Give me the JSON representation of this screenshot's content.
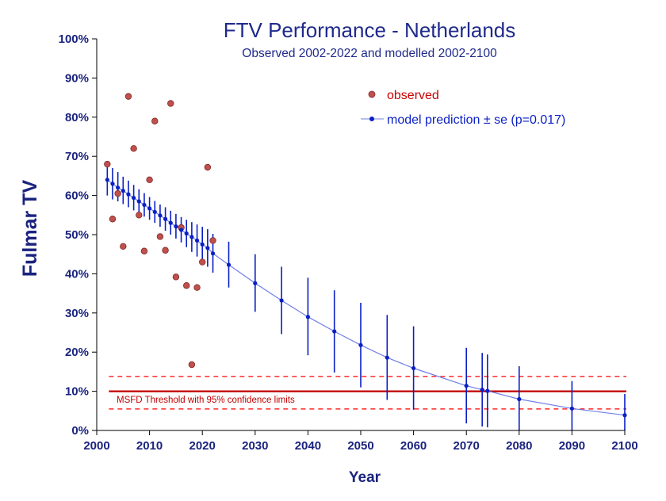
{
  "chart_data": {
    "type": "scatter",
    "title": "FTV Performance - Netherlands",
    "subtitle": "Observed 2002-2022 and modelled 2002-2100",
    "xlabel": "Year",
    "ylabel": "Fulmar TV",
    "xlim": [
      2000,
      2100
    ],
    "ylim": [
      0,
      100
    ],
    "x_ticks": [
      2000,
      2010,
      2020,
      2030,
      2040,
      2050,
      2060,
      2070,
      2080,
      2090,
      2100
    ],
    "y_ticks": [
      "0%",
      "10%",
      "20%",
      "30%",
      "40%",
      "50%",
      "60%",
      "70%",
      "80%",
      "90%",
      "100%"
    ],
    "legend": [
      "observed",
      "model prediction ± se (p=0.017)"
    ],
    "legend_position": "top-right",
    "threshold_label": "MSFD Threshold with 95% confidence limits",
    "threshold": {
      "value": 10,
      "lower": 5.5,
      "upper": 13.8,
      "x_start": 2002,
      "x_end": 2100
    },
    "observed": [
      {
        "x": 2002,
        "y": 68
      },
      {
        "x": 2003,
        "y": 54
      },
      {
        "x": 2004,
        "y": 60.5
      },
      {
        "x": 2005,
        "y": 47
      },
      {
        "x": 2006,
        "y": 85.3
      },
      {
        "x": 2007,
        "y": 72
      },
      {
        "x": 2008,
        "y": 55
      },
      {
        "x": 2009,
        "y": 45.8
      },
      {
        "x": 2010,
        "y": 64
      },
      {
        "x": 2011,
        "y": 79
      },
      {
        "x": 2012,
        "y": 49.5
      },
      {
        "x": 2013,
        "y": 46
      },
      {
        "x": 2014,
        "y": 83.5
      },
      {
        "x": 2015,
        "y": 39.2
      },
      {
        "x": 2016,
        "y": 51.8
      },
      {
        "x": 2017,
        "y": 37
      },
      {
        "x": 2018,
        "y": 16.8
      },
      {
        "x": 2019,
        "y": 36.5
      },
      {
        "x": 2020,
        "y": 43
      },
      {
        "x": 2021,
        "y": 67.2
      },
      {
        "x": 2022,
        "y": 48.5
      }
    ],
    "model": [
      {
        "x": 2002,
        "y": 64,
        "lo": 60,
        "hi": 68
      },
      {
        "x": 2003,
        "y": 63,
        "lo": 59,
        "hi": 67
      },
      {
        "x": 2004,
        "y": 62,
        "lo": 58.5,
        "hi": 66
      },
      {
        "x": 2005,
        "y": 61.2,
        "lo": 57.8,
        "hi": 64.8
      },
      {
        "x": 2006,
        "y": 60.3,
        "lo": 57,
        "hi": 63.8
      },
      {
        "x": 2007,
        "y": 59.4,
        "lo": 56.2,
        "hi": 62.7
      },
      {
        "x": 2008,
        "y": 58.5,
        "lo": 55.4,
        "hi": 61.6
      },
      {
        "x": 2009,
        "y": 57.6,
        "lo": 54.6,
        "hi": 60.6
      },
      {
        "x": 2010,
        "y": 56.7,
        "lo": 53.8,
        "hi": 59.6
      },
      {
        "x": 2011,
        "y": 55.8,
        "lo": 53,
        "hi": 58.6
      },
      {
        "x": 2012,
        "y": 54.9,
        "lo": 52,
        "hi": 57.7
      },
      {
        "x": 2013,
        "y": 54,
        "lo": 51,
        "hi": 57
      },
      {
        "x": 2014,
        "y": 53,
        "lo": 50,
        "hi": 56.1
      },
      {
        "x": 2015,
        "y": 52.1,
        "lo": 49,
        "hi": 55.3
      },
      {
        "x": 2016,
        "y": 51.2,
        "lo": 48,
        "hi": 54.5
      },
      {
        "x": 2017,
        "y": 50.3,
        "lo": 46.8,
        "hi": 53.8
      },
      {
        "x": 2018,
        "y": 49.4,
        "lo": 45.6,
        "hi": 53.2
      },
      {
        "x": 2019,
        "y": 48.5,
        "lo": 44.4,
        "hi": 52.6
      },
      {
        "x": 2020,
        "y": 47.5,
        "lo": 43,
        "hi": 52
      },
      {
        "x": 2021,
        "y": 46.6,
        "lo": 41.8,
        "hi": 51.4
      },
      {
        "x": 2022,
        "y": 45.2,
        "lo": 40.3,
        "hi": 50.2
      },
      {
        "x": 2025,
        "y": 42.3,
        "lo": 36.5,
        "hi": 48.2
      },
      {
        "x": 2030,
        "y": 37.6,
        "lo": 30.3,
        "hi": 45
      },
      {
        "x": 2035,
        "y": 33.2,
        "lo": 24.6,
        "hi": 41.8
      },
      {
        "x": 2040,
        "y": 29,
        "lo": 19.2,
        "hi": 39
      },
      {
        "x": 2045,
        "y": 25.3,
        "lo": 14.8,
        "hi": 35.8
      },
      {
        "x": 2050,
        "y": 21.8,
        "lo": 11,
        "hi": 32.6
      },
      {
        "x": 2055,
        "y": 18.6,
        "lo": 7.8,
        "hi": 29.5
      },
      {
        "x": 2060,
        "y": 15.9,
        "lo": 5.3,
        "hi": 26.6
      },
      {
        "x": 2070,
        "y": 11.4,
        "lo": 1.8,
        "hi": 21.1
      },
      {
        "x": 2073,
        "y": 10.4,
        "lo": 1,
        "hi": 19.8
      },
      {
        "x": 2074,
        "y": 10.1,
        "lo": 0.8,
        "hi": 19.4
      },
      {
        "x": 2080,
        "y": 8,
        "lo": 0,
        "hi": 16.4
      },
      {
        "x": 2090,
        "y": 5.6,
        "lo": 0,
        "hi": 12.6
      },
      {
        "x": 2100,
        "y": 3.9,
        "lo": 0,
        "hi": 9.3
      }
    ],
    "colors": {
      "observed_fill": "#c0504d",
      "observed_stroke": "#7f2b28",
      "model": "#0a1fc4",
      "model_line": "#6f7fe6",
      "threshold": "#c00000",
      "threshold_dash": "#ff2a2a",
      "axis_text": "#1a237e",
      "title": "#1f2a8c",
      "legend_observed_text": "#cc0000",
      "legend_model_text": "#0a1fc4"
    }
  }
}
